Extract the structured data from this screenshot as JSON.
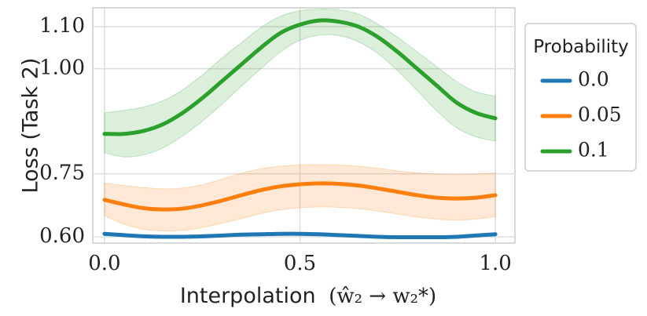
{
  "chart_data": {
    "type": "line",
    "title": "",
    "xlabel": "Interpolation",
    "xlabel_math": "(ŵ₂ → w₂*)",
    "ylabel": "Loss (Task 2)",
    "xlim": [
      -0.03,
      1.05
    ],
    "ylim": [
      0.585,
      1.145
    ],
    "xticks": [
      0.0,
      0.5,
      1.0
    ],
    "xtick_labels": [
      "0.0",
      "0.5",
      "1.0"
    ],
    "yticks": [
      0.6,
      0.75,
      1.0,
      1.1
    ],
    "ytick_labels": [
      "0.60",
      "0.75",
      "1.00",
      "1.10"
    ],
    "grid": true,
    "legend": {
      "title": "Probability",
      "placement": "right-outside"
    },
    "x": [
      0.0,
      0.05,
      0.1,
      0.15,
      0.2,
      0.25,
      0.3,
      0.35,
      0.4,
      0.45,
      0.5,
      0.55,
      0.6,
      0.65,
      0.7,
      0.75,
      0.8,
      0.85,
      0.9,
      0.95,
      1.0
    ],
    "series": [
      {
        "name": "0.0",
        "color": "#1f77b4",
        "values": [
          0.607,
          0.604,
          0.601,
          0.6,
          0.6,
          0.601,
          0.603,
          0.605,
          0.606,
          0.607,
          0.607,
          0.606,
          0.604,
          0.602,
          0.6,
          0.599,
          0.599,
          0.599,
          0.6,
          0.603,
          0.606
        ],
        "lower": [
          0.607,
          0.604,
          0.601,
          0.6,
          0.6,
          0.601,
          0.603,
          0.605,
          0.606,
          0.607,
          0.607,
          0.606,
          0.604,
          0.602,
          0.6,
          0.599,
          0.599,
          0.599,
          0.6,
          0.603,
          0.606
        ],
        "upper": [
          0.607,
          0.604,
          0.601,
          0.6,
          0.6,
          0.601,
          0.603,
          0.605,
          0.606,
          0.607,
          0.607,
          0.606,
          0.604,
          0.602,
          0.6,
          0.599,
          0.599,
          0.599,
          0.6,
          0.603,
          0.606
        ]
      },
      {
        "name": "0.05",
        "color": "#ff7f0e",
        "values": [
          0.688,
          0.677,
          0.668,
          0.665,
          0.667,
          0.675,
          0.686,
          0.699,
          0.711,
          0.72,
          0.725,
          0.727,
          0.726,
          0.722,
          0.715,
          0.707,
          0.699,
          0.693,
          0.691,
          0.693,
          0.699
        ],
        "lower": [
          0.65,
          0.63,
          0.618,
          0.614,
          0.615,
          0.622,
          0.632,
          0.643,
          0.655,
          0.664,
          0.669,
          0.671,
          0.67,
          0.667,
          0.661,
          0.654,
          0.647,
          0.642,
          0.64,
          0.642,
          0.648
        ],
        "upper": [
          0.728,
          0.722,
          0.717,
          0.714,
          0.716,
          0.724,
          0.737,
          0.751,
          0.762,
          0.768,
          0.771,
          0.772,
          0.771,
          0.768,
          0.763,
          0.757,
          0.752,
          0.749,
          0.748,
          0.749,
          0.752
        ]
      },
      {
        "name": "0.1",
        "color": "#2ca02c",
        "values": [
          0.845,
          0.845,
          0.852,
          0.868,
          0.895,
          0.93,
          0.97,
          1.01,
          1.05,
          1.085,
          1.105,
          1.115,
          1.112,
          1.1,
          1.075,
          1.04,
          1.0,
          0.96,
          0.92,
          0.895,
          0.882
        ],
        "lower": [
          0.8,
          0.79,
          0.795,
          0.812,
          0.84,
          0.875,
          0.915,
          0.958,
          1.0,
          1.04,
          1.068,
          1.08,
          1.079,
          1.064,
          1.036,
          0.995,
          0.948,
          0.9,
          0.86,
          0.838,
          0.828
        ],
        "upper": [
          0.895,
          0.901,
          0.909,
          0.924,
          0.95,
          0.985,
          1.025,
          1.062,
          1.098,
          1.125,
          1.138,
          1.142,
          1.14,
          1.13,
          1.106,
          1.075,
          1.04,
          1.005,
          0.97,
          0.945,
          0.935
        ]
      }
    ]
  }
}
